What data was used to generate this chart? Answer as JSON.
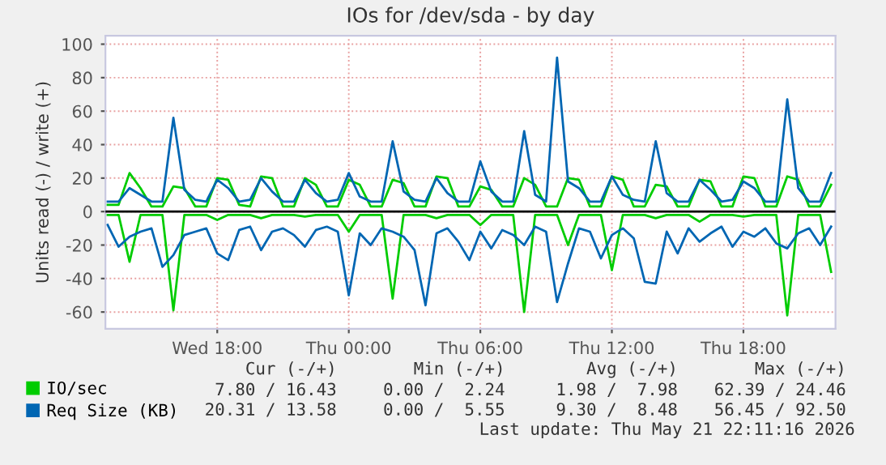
{
  "chart_data": {
    "type": "line",
    "title": "IOs for /dev/sda - by day",
    "ylabel": "Units read (-) / write (+)",
    "x": [
      "2026-05-20T13:00",
      "2026-05-20T13:30",
      "2026-05-20T14:00",
      "2026-05-20T14:30",
      "2026-05-20T15:00",
      "2026-05-20T15:30",
      "2026-05-20T16:00",
      "2026-05-20T16:30",
      "2026-05-20T17:00",
      "2026-05-20T17:30",
      "2026-05-20T18:00",
      "2026-05-20T18:30",
      "2026-05-20T19:00",
      "2026-05-20T19:30",
      "2026-05-20T20:00",
      "2026-05-20T20:30",
      "2026-05-20T21:00",
      "2026-05-20T21:30",
      "2026-05-20T22:00",
      "2026-05-20T22:30",
      "2026-05-20T23:00",
      "2026-05-20T23:30",
      "2026-05-21T00:00",
      "2026-05-21T00:30",
      "2026-05-21T01:00",
      "2026-05-21T01:30",
      "2026-05-21T02:00",
      "2026-05-21T02:30",
      "2026-05-21T03:00",
      "2026-05-21T03:30",
      "2026-05-21T04:00",
      "2026-05-21T04:30",
      "2026-05-21T05:00",
      "2026-05-21T05:30",
      "2026-05-21T06:00",
      "2026-05-21T06:30",
      "2026-05-21T07:00",
      "2026-05-21T07:30",
      "2026-05-21T08:00",
      "2026-05-21T08:30",
      "2026-05-21T09:00",
      "2026-05-21T09:30",
      "2026-05-21T10:00",
      "2026-05-21T10:30",
      "2026-05-21T11:00",
      "2026-05-21T11:30",
      "2026-05-21T12:00",
      "2026-05-21T12:30",
      "2026-05-21T13:00",
      "2026-05-21T13:30",
      "2026-05-21T14:00",
      "2026-05-21T14:30",
      "2026-05-21T15:00",
      "2026-05-21T15:30",
      "2026-05-21T16:00",
      "2026-05-21T16:30",
      "2026-05-21T17:00",
      "2026-05-21T17:30",
      "2026-05-21T18:00",
      "2026-05-21T18:30",
      "2026-05-21T19:00",
      "2026-05-21T19:30",
      "2026-05-21T20:00",
      "2026-05-21T20:30",
      "2026-05-21T21:00",
      "2026-05-21T21:30",
      "2026-05-21T22:00"
    ],
    "series": [
      {
        "name": "IO/sec",
        "color": "#00cc00",
        "values": [
          4,
          4,
          23,
          14,
          3,
          3,
          15,
          14,
          3,
          3,
          20,
          19,
          4,
          3,
          21,
          20,
          3,
          3,
          20,
          16,
          3,
          3,
          19,
          16,
          3,
          3,
          19,
          17,
          3,
          3,
          21,
          20,
          3,
          3,
          15,
          13,
          3,
          3,
          20,
          16,
          3,
          3,
          20,
          19,
          3,
          3,
          21,
          19,
          3,
          3,
          16,
          15,
          3,
          3,
          19,
          18,
          3,
          3,
          21,
          20,
          3,
          3,
          21,
          19,
          3,
          3,
          16
        ]
      },
      {
        "name": "Req Size (KB)",
        "color": "#0066b3",
        "values": [
          6,
          6,
          14,
          10,
          6,
          6,
          56,
          13,
          7,
          6,
          19,
          14,
          6,
          7,
          20,
          12,
          6,
          6,
          19,
          11,
          6,
          7,
          23,
          9,
          6,
          6,
          42,
          12,
          7,
          6,
          20,
          11,
          6,
          6,
          30,
          12,
          6,
          6,
          48,
          10,
          6,
          92,
          18,
          14,
          6,
          6,
          21,
          10,
          7,
          6,
          42,
          11,
          6,
          6,
          19,
          13,
          6,
          7,
          18,
          14,
          6,
          6,
          67,
          14,
          6,
          6,
          23
        ]
      },
      {
        "color": "#00cc00",
        "values": [
          -2,
          -2,
          -30,
          -2,
          -2,
          -2,
          -59,
          -2,
          -2,
          -2,
          -5,
          -2,
          -2,
          -2,
          -4,
          -2,
          -2,
          -2,
          -3,
          -2,
          -2,
          -2,
          -12,
          -2,
          -2,
          -2,
          -52,
          -2,
          -2,
          -2,
          -4,
          -2,
          -2,
          -2,
          -8,
          -2,
          -2,
          -2,
          -60,
          -2,
          -2,
          -2,
          -20,
          -2,
          -2,
          -2,
          -35,
          -2,
          -2,
          -2,
          -4,
          -2,
          -2,
          -2,
          -6,
          -2,
          -2,
          -2,
          -3,
          -2,
          -2,
          -2,
          -62,
          -2,
          -2,
          -2,
          -36
        ]
      },
      {
        "color": "#0066b3",
        "values": [
          -8,
          -21,
          -15,
          -12,
          -10,
          -33,
          -26,
          -14,
          -12,
          -10,
          -25,
          -29,
          -11,
          -9,
          -23,
          -12,
          -10,
          -14,
          -21,
          -11,
          -9,
          -12,
          -50,
          -13,
          -20,
          -10,
          -12,
          -15,
          -23,
          -56,
          -13,
          -10,
          -18,
          -29,
          -12,
          -22,
          -11,
          -14,
          -20,
          -9,
          -12,
          -54,
          -31,
          -10,
          -12,
          -28,
          -14,
          -10,
          -16,
          -42,
          -43,
          -12,
          -25,
          -10,
          -18,
          -13,
          -9,
          -21,
          -12,
          -15,
          -10,
          -19,
          -22,
          -13,
          -10,
          -20,
          -9
        ]
      }
    ],
    "xlim": [
      "2026-05-20T12:54",
      "2026-05-21T22:12"
    ],
    "xticks": [
      {
        "value": "2026-05-20T18:00",
        "label": "Wed 18:00"
      },
      {
        "value": "2026-05-21T00:00",
        "label": "Thu 00:00"
      },
      {
        "value": "2026-05-21T06:00",
        "label": "Thu 06:00"
      },
      {
        "value": "2026-05-21T12:00",
        "label": "Thu 12:00"
      },
      {
        "value": "2026-05-21T18:00",
        "label": "Thu 18:00"
      }
    ],
    "ylim": [
      -70,
      105
    ],
    "yticks": [
      -60,
      -40,
      -20,
      0,
      20,
      40,
      60,
      80,
      100
    ],
    "ref_lines": [
      {
        "axis": "y",
        "value": 0,
        "color": "#000000"
      }
    ],
    "grid": true,
    "legend": "bottom",
    "line_style": "solid",
    "marker": "none",
    "annotations": [
      "Cur (-/+)",
      "Min (-/+)",
      "Avg (-/+)",
      "Max (-/+)",
      "7.80 / 16.43",
      "0.00 /  2.24",
      "1.98 /  7.98",
      "62.39 / 24.46",
      "20.31 / 13.58",
      "0.00 /  5.55",
      "9.30 /  8.48",
      "56.45 / 92.50",
      "Last update: Thu May 21 22:11:16 2026"
    ]
  }
}
